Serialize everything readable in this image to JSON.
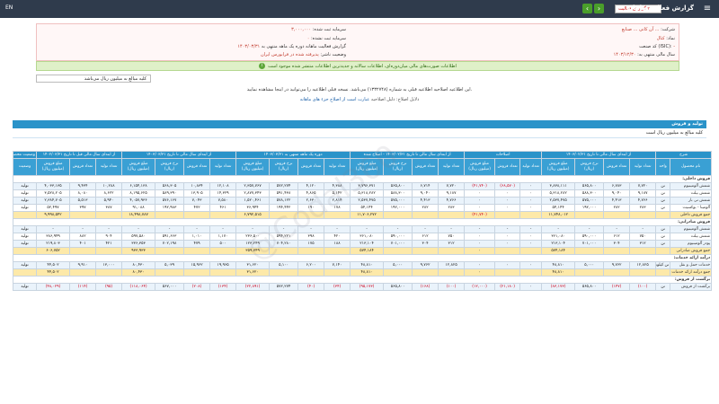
{
  "topbar": {
    "title": "گزارش فعالیت ماهانه",
    "report_type_value": "گزارش فعالیت",
    "menu_icon": "hamburger-icon",
    "system_label": "EN"
  },
  "info": {
    "company_label": "شرکت:",
    "company_value": "... آن کانی ... صنایع",
    "symbol_label": "نماد:",
    "symbol_value": "کنال",
    "isic_label": "کد صنعت (ISIC):",
    "isic_value": "-",
    "fiscal_year_label": "سال مالی منتهی به:",
    "fiscal_year_value": "۱۴۰۳/۱۲/۳۰",
    "capital_label": "سرمایه ثبت شده:",
    "capital_value": "۳,۰۰۰,۰۰۰",
    "unregistered_capital_label": "سرمایه ثبت نشده:",
    "unregistered_capital_value": "۰",
    "period_label": "گزارش فعالیت ماهانه دوره یک ماهه منتهی به",
    "period_value": "۱۴۰۳/۰۳/۳۱",
    "status_label": "وضعیت ناشر:",
    "status_value": "پذیرفته شده در فرابورس ایران"
  },
  "green_note": "اطلاعات صورت‌های مالی میان‌دوره‌ای، اطلاعات سالانه و جدیدترین اطلاعات منتشر شده موجود است",
  "note_box": "کلیه مبالغ به میلیون ریال می‌باشد",
  "desc1": "این اطلاعیه اصلاحیه اطلاعیه قبلی به شماره (۱۳۳۲۷۴۸) می‌باشد. نسخه قبلی اطلاعیه را می‌توانید در اینجا مشاهده نمایید.",
  "desc2_lead": "دلایل اصلاح: دلیل اصلاحیه",
  "desc2_link": "عبارت است از اصلاح جزء های ماهانه",
  "panel": {
    "title": "تولید و فروش",
    "subtitle": "کلیه مبالغ به میلیون ریال است"
  },
  "table": {
    "group_headers": [
      "شرح",
      "از ابتدای سال مالی تا تاریخ ۱۴۰۳/۰۲/۳۱",
      "اصلاحات",
      "از ابتدای سال مالی تا تاریخ ۱۴۰۳/۰۲/۳۱ - اصلاح شده",
      "دوره یک ماهه منتهی به ۱۴۰۳/۰۳/۳۱",
      "از ابتدای سال مالی تا تاریخ ۱۴۰۳/۰۳/۳۱",
      "از ابتدای سال مالی قبل تا تاریخ ۱۴۰۲/۰۳/۳۱",
      "وضعیت محصول - واحد"
    ],
    "sub_headers": [
      "نام محصول",
      "واحد",
      "تعداد تولید",
      "تعداد فروش",
      "نرخ فروش (ریال)",
      "مبلغ فروش (میلیون ریال)",
      "تعداد تولید",
      "تعداد فروش",
      "مبلغ فروش (میلیون ریال)",
      "تعداد تولید",
      "تعداد فروش",
      "نرخ فروش (ریال)",
      "مبلغ فروش (میلیون ریال)",
      "تعداد تولید",
      "تعداد فروش",
      "نرخ فروش (ریال)",
      "مبلغ فروش (میلیون ریال)",
      "تعداد تولید",
      "تعداد فروش",
      "نرخ فروش (ریال)",
      "مبلغ فروش (میلیون ریال)",
      "تعداد تولید",
      "تعداد فروش",
      "مبلغ فروش (میلیون ریال)",
      "وضعیت"
    ],
    "rows": [
      {
        "type": "sec",
        "cells": [
          "فروش داخلی:"
        ]
      },
      {
        "type": "odd",
        "cells": [
          "شمش آلومینیوم",
          "تن",
          "۷,۷۲۰",
          "۶,۷۸۳",
          "۵۶۵,۸۰۰",
          "۳,۸۳۸,۱۱۱",
          "۰",
          "(۶۸,۵۷۰)",
          "(۴۱,۷۴۰)",
          "۷,۷۲۰",
          "۶,۷۱۴",
          "۵۶۵,۸۰۰",
          "۳,۷۹۶,۳۷۱",
          "۴,۳۸۸",
          "۴,۱۲۰",
          "۵۷۲,۲۷۴",
          "۲,۳۵۷,۷۶۷",
          "۱۲,۱۰۸",
          "۱۰,۸۳۴",
          "۵۶۸,۳۰۵",
          "۶,۱۵۴,۱۳۸",
          "۱۰,۲۸۸",
          "۹,۴۳۴",
          "۴,۰۳۳,۱۳۵",
          "تولید"
        ]
      },
      {
        "type": "even",
        "cells": [
          "شمش بیلت",
          "تن",
          "۹,۱۸۷",
          "۹,۰۴۰",
          "۵۸۸,۳۰۰",
          "۵,۳۱۸,۲۸۲",
          "۰",
          "۰",
          "۰",
          "۹,۱۸۷",
          "۹,۰۴۰",
          "۵۸۸,۳۰۰",
          "۵,۳۱۸,۲۸۲",
          "۵,۱۴۲",
          "۴,۸۶۵",
          "۵۹۱,۴۳۸",
          "۲,۸۷۷,۳۴۳",
          "۱۴,۳۲۹",
          "۱۳,۹۰۵",
          "۵۸۹,۳۹۰",
          "۸,۱۹۵,۶۲۵",
          "۸,۶۲۲",
          "۸,۰۸۰",
          "۳,۵۲۸,۲۰۵",
          "تولید"
        ]
      },
      {
        "type": "odd",
        "cells": [
          "شمش تی بار",
          "تن",
          "۴,۷۶۶",
          "۴,۴۱۳",
          "۵۷۵,۰۰۰",
          "۲,۵۳۷,۴۷۵",
          "۰",
          "۰",
          "۰",
          "۴,۷۶۶",
          "۴,۴۱۳",
          "۵۷۵,۰۰۰",
          "۲,۵۳۷,۴۷۵",
          "۲,۸۱۴",
          "۲,۶۳۰",
          "۵۷۸,۱۲۲",
          "۱,۵۲۰,۴۶۱",
          "۷,۵۸۰",
          "۷,۰۴۳",
          "۵۷۶,۱۶۷",
          "۴,۰۵۷,۹۳۶",
          "۵,۹۴۰",
          "۵,۵۱۳",
          "۲,۳۸۴,۷۰۵",
          "تولید"
        ]
      },
      {
        "type": "even",
        "cells": [
          "آلومینا - بوکسیت",
          "تن",
          "۲۸۳",
          "۲۸۲",
          "۱۹۲,۰۰۰",
          "۵۴,۱۴۴",
          "۰",
          "۰",
          "۰",
          "۲۸۳",
          "۲۸۲",
          "۱۹۲,۰۰۰",
          "۵۴,۱۴۴",
          "۱۷۸",
          "۱۹۰",
          "۱۹۴,۴۴۲",
          "۳۶,۹۴۴",
          "۴۶۱",
          "۴۷۲",
          "۱۹۲,۹۸۳",
          "۹۱,۰۸۸",
          "۳۸۷",
          "۳۹۷",
          "۵۲,۴۹۷",
          "تولید"
        ]
      },
      {
        "type": "sum",
        "cells": [
          "جمع فروش داخلی",
          "",
          "",
          "",
          "",
          "۱۱,۷۴۸,۰۱۲",
          "",
          "",
          "(۴۱,۷۴۰)",
          "",
          "",
          "",
          "۱۱,۷۰۶,۲۷۲",
          "",
          "",
          "",
          "۶,۷۹۲,۵۱۵",
          "",
          "",
          "",
          "۱۸,۴۹۸,۷۸۷",
          "",
          "",
          "۹,۹۹۸,۵۴۲",
          ""
        ]
      },
      {
        "type": "sec",
        "cells": [
          "فروش صادراتی:"
        ]
      },
      {
        "type": "odd",
        "cells": [
          "شمش آلومینیوم",
          "تن",
          "-",
          "-",
          "-",
          "-",
          "-",
          "-",
          "-",
          "-",
          "-",
          "-",
          "-",
          "-",
          "-",
          "-",
          "-",
          "-",
          "-",
          "-",
          "-",
          "-",
          "-",
          "-",
          "تولید"
        ]
      },
      {
        "type": "even",
        "cells": [
          "شمش بیلت",
          "تن",
          "۷۵۰",
          "۶۱۲",
          "۵۹۰,۰۰۰",
          "۳۶۱,۰۸۰",
          "۰",
          "۰",
          "۰",
          "۷۵۰",
          "۶۱۲",
          "۵۹۰,۰۰۰",
          "۳۶۱,۰۸۰",
          "۴۲۰",
          "۳۹۸",
          "۵۹۴,۲۲۱",
          "۲۳۶,۵۰۰",
          "۱,۱۷۰",
          "۱,۰۱۰",
          "۵۹۱,۶۶۳",
          "۵۹۷,۵۸۰",
          "۹۰۴",
          "۸۸۲",
          "۳۸۶,۹۴۹",
          "تولید"
        ]
      },
      {
        "type": "odd",
        "cells": [
          "پودر آلومینیوم",
          "تن",
          "۳۱۲",
          "۳۰۴",
          "۷۰۱,۰۰۰",
          "۲۱۳,۱۰۴",
          "۰",
          "۰",
          "۰",
          "۳۱۲",
          "۳۰۴",
          "۷۰۱,۰۰۰",
          "۲۱۳,۱۰۴",
          "۱۸۸",
          "۱۷۵",
          "۷۰۴,۲۸۰",
          "۱۲۳,۲۴۹",
          "۵۰۰",
          "۴۷۹",
          "۷۰۲,۱۹۸",
          "۳۳۶,۳۵۳",
          "۴۲۱",
          "۴۰۱",
          "۲۱۹,۸۰۳",
          "تولید"
        ]
      },
      {
        "type": "sum",
        "cells": [
          "جمع فروش صادراتی",
          "",
          "",
          "",
          "",
          "۵۷۴,۱۸۴",
          "",
          "",
          "۰",
          "",
          "",
          "",
          "۵۷۴,۱۸۴",
          "",
          "",
          "",
          "۳۵۹,۷۴۹",
          "",
          "",
          "",
          "۹۳۳,۹۳۳",
          "",
          "",
          "۶۰۶,۷۵۲",
          ""
        ]
      },
      {
        "type": "sec",
        "cells": [
          "درآمد ارائه خدمات:"
        ]
      },
      {
        "type": "odd",
        "cells": [
          "خدمات حمل و نقل",
          "تن کیلومتر",
          "۱۲,۸۲۵",
          "۹,۷۶۲",
          "۵,۰۰۰",
          "۴۸,۸۱۰",
          "۰",
          "۰",
          "۰",
          "۱۲,۸۲۵",
          "۹,۷۶۲",
          "۵,۰۰۰",
          "۴۸,۸۱۰",
          "۷,۱۴۰",
          "۶,۲۰۰",
          "۵,۱۰۰",
          "۳۱,۶۲۰",
          "۱۹,۹۶۵",
          "۱۵,۹۶۲",
          "۵,۰۳۹",
          "۸۰,۴۳۰",
          "۱۳,۰۰۰",
          "۹,۹۱۰",
          "۴۴,۵۰۲",
          "تولید"
        ]
      },
      {
        "type": "sum",
        "cells": [
          "جمع درآمد ارائه خدمات",
          "",
          "",
          "",
          "",
          "۴۸,۸۱۰",
          "",
          "",
          "۰",
          "",
          "",
          "",
          "۴۸,۸۱۰",
          "",
          "",
          "",
          "۳۱,۶۲۰",
          "",
          "",
          "",
          "۸۰,۴۳۰",
          "",
          "",
          "۴۴,۵۰۲",
          ""
        ]
      },
      {
        "type": "sec",
        "cells": [
          "برگشت از فروش:"
        ]
      },
      {
        "type": "odd",
        "cells": [
          "برگشت از فروش",
          "تن",
          "(۱۰۰)",
          "(۱۴۷)",
          "۵۶۵,۸۰۰",
          "(۸۳,۱۷۳)",
          "۰",
          "(۲۱,۱۸۰)",
          "(۱۲,۰۰۰)",
          "(۱۰۰)",
          "(۱۶۸)",
          "۵۶۵,۸۰۰",
          "(۹۵,۱۷۳)",
          "(۳۴)",
          "(۴۰)",
          "۵۷۲,۲۷۴",
          "(۲۲,۸۹۱)",
          "(۱۳۴)",
          "(۲۰۸)",
          "۵۶۷,۰۰۰",
          "(۱۱۸,۰۶۴)",
          "(۹۵)",
          "(۱۱۴)",
          "(۴۸,۰۲۹)",
          "تولید"
        ]
      }
    ]
  },
  "watermark": "@Codal360"
}
